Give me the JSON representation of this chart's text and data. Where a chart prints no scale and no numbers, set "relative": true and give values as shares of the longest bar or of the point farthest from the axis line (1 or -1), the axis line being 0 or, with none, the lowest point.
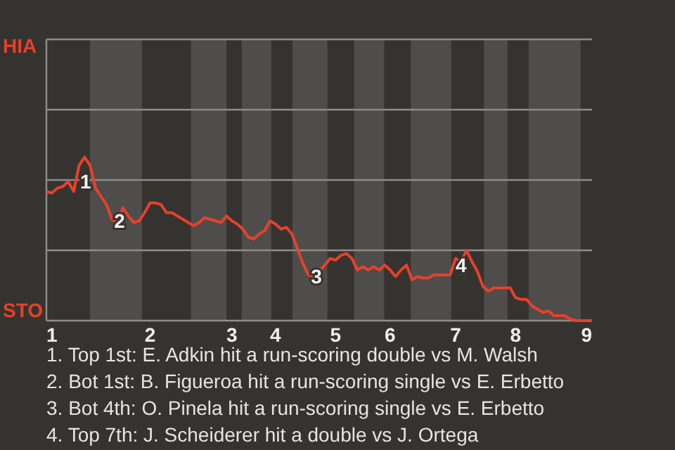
{
  "chart_data": {
    "type": "line",
    "relative": true,
    "marker": "none",
    "line_style": "solid",
    "categories": [
      null,
      "1",
      null,
      null,
      null,
      null,
      null,
      null,
      null,
      null,
      null,
      null,
      null,
      null,
      null,
      null,
      null,
      null,
      null,
      "2",
      null,
      null,
      null,
      null,
      null,
      null,
      null,
      null,
      null,
      null,
      null,
      null,
      null,
      null,
      "3",
      null,
      null,
      null,
      null,
      null,
      null,
      null,
      "4",
      null,
      null,
      null,
      null,
      null,
      null,
      null,
      null,
      null,
      null,
      "5",
      null,
      null,
      null,
      null,
      null,
      null,
      null,
      null,
      null,
      "6",
      null,
      null,
      null,
      null,
      null,
      null,
      null,
      null,
      null,
      null,
      null,
      "7",
      null,
      null,
      null,
      null,
      null,
      null,
      null,
      null,
      null,
      null,
      "8",
      null,
      null,
      null,
      null,
      null,
      null,
      null,
      null,
      null,
      null,
      null,
      null,
      "9",
      null
    ],
    "series": [
      {
        "color": "#e8402a",
        "values": [
          0.79,
          0.78,
          0.81,
          0.82,
          0.85,
          0.79,
          0.95,
          1,
          0.95,
          0.81,
          0.76,
          0.71,
          0.62,
          0.6,
          0.69,
          0.64,
          0.6,
          0.61,
          0.66,
          0.72,
          0.72,
          0.71,
          0.66,
          0.66,
          0.64,
          0.62,
          0.6,
          0.58,
          0.6,
          0.63,
          0.62,
          0.61,
          0.6,
          0.64,
          0.61,
          0.59,
          0.56,
          0.51,
          0.5,
          0.53,
          0.55,
          0.61,
          0.59,
          0.56,
          0.57,
          0.53,
          0.44,
          0.35,
          0.28,
          0.27,
          0.3,
          0.34,
          0.38,
          0.37,
          0.4,
          0.41,
          0.38,
          0.31,
          0.33,
          0.31,
          0.33,
          0.31,
          0.34,
          0.31,
          0.27,
          0.31,
          0.34,
          0.25,
          0.27,
          0.26,
          0.26,
          0.28,
          0.28,
          0.28,
          0.28,
          0.38,
          0.36,
          0.43,
          0.36,
          0.3,
          0.21,
          0.18,
          0.2,
          0.2,
          0.2,
          0.2,
          0.14,
          0.13,
          0.13,
          0.09,
          0.07,
          0.05,
          0.06,
          0.03,
          0.03,
          0.03,
          0.01,
          0,
          0,
          0,
          0
        ]
      }
    ],
    "ref_lines": [
      {
        "axis": "y",
        "value": 0.43
      },
      {
        "axis": "y",
        "value": 0.86
      },
      {
        "axis": "y",
        "value": 1.29
      }
    ],
    "annotations": [
      {
        "text": "1",
        "y": 0.84
      },
      {
        "text": "2",
        "y": 0.6
      },
      {
        "text": "3",
        "y": 0.26
      },
      {
        "text": "4",
        "y": 0.33
      },
      "HIA",
      "STO",
      "1. Top 1st: E. Adkin hit a run-scoring double vs M. Walsh",
      "2. Bot 1st: B. Figueroa hit a run-scoring single vs E. Erbetto",
      "3. Bot 4th: O. Pinela hit a run-scoring single vs E. Erbetto",
      "4. Top 7th: J. Scheiderer hit a double vs J. Ortega"
    ]
  }
}
